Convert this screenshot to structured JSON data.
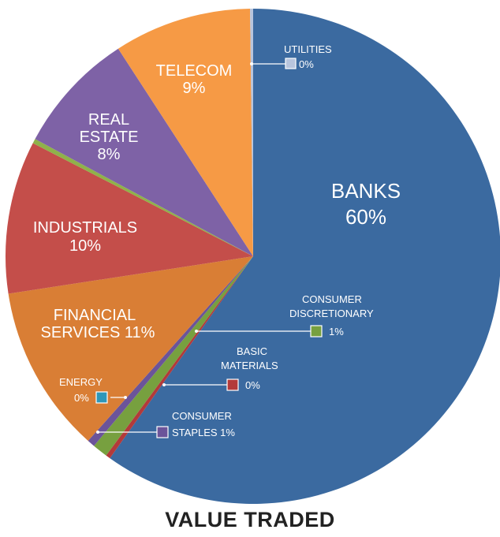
{
  "chart_data": {
    "type": "pie",
    "title": "VALUE TRADED",
    "slices": [
      {
        "label": "BANKS",
        "value": 60,
        "display": "60%",
        "color": "#3B6AA0"
      },
      {
        "label": "BASIC MATERIALS",
        "value": 0.3,
        "display": "0%",
        "color": "#B33A3A"
      },
      {
        "label": "CONSUMER DISCRETIONARY",
        "value": 1,
        "display": "1%",
        "color": "#77A03F"
      },
      {
        "label": "CONSUMER STAPLES",
        "value": 0.5,
        "display": "1%",
        "color": "#6B549A"
      },
      {
        "label": "ENERGY",
        "value": 0.0,
        "display": "0%",
        "color": "#2E97B8"
      },
      {
        "label": "FINANCIAL SERVICES",
        "value": 11,
        "display": "11%",
        "color": "#D97E35"
      },
      {
        "label": "INDUSTRIALS",
        "value": 10,
        "display": "10%",
        "color": "#C44E4A"
      },
      {
        "label": "RE/IND SLIVER",
        "value": 0.3,
        "display": "",
        "color": "#8FB24A"
      },
      {
        "label": "REAL ESTATE",
        "value": 8,
        "display": "8%",
        "color": "#7E62A6"
      },
      {
        "label": "TELECOM",
        "value": 9,
        "display": "9%",
        "color": "#F69A45"
      },
      {
        "label": "UTILITIES",
        "value": 0.2,
        "display": "0%",
        "color": "#B8C5DD"
      }
    ]
  },
  "labels": {
    "banks": {
      "name": "BANKS",
      "pct": "60%"
    },
    "telecom": {
      "name": "TELECOM",
      "pct": "9%"
    },
    "real_estate": {
      "line1": "REAL",
      "line2": "ESTATE",
      "pct": "8%"
    },
    "industrials": {
      "name": "INDUSTRIALS",
      "pct": "10%"
    },
    "financial": {
      "line1": "FINANCIAL",
      "line2": "SERVICES 11%"
    },
    "utilities": {
      "name": "UTILITIES",
      "pct": "0%"
    },
    "consumer_disc": {
      "line1": "CONSUMER",
      "line2": "DISCRETIONARY",
      "pct": "1%"
    },
    "basic": {
      "line1": "BASIC",
      "line2": "MATERIALS",
      "pct": "0%"
    },
    "energy": {
      "name": "ENERGY",
      "pct": "0%"
    },
    "staples": {
      "line1": "CONSUMER",
      "line2": "STAPLES 1%"
    }
  }
}
